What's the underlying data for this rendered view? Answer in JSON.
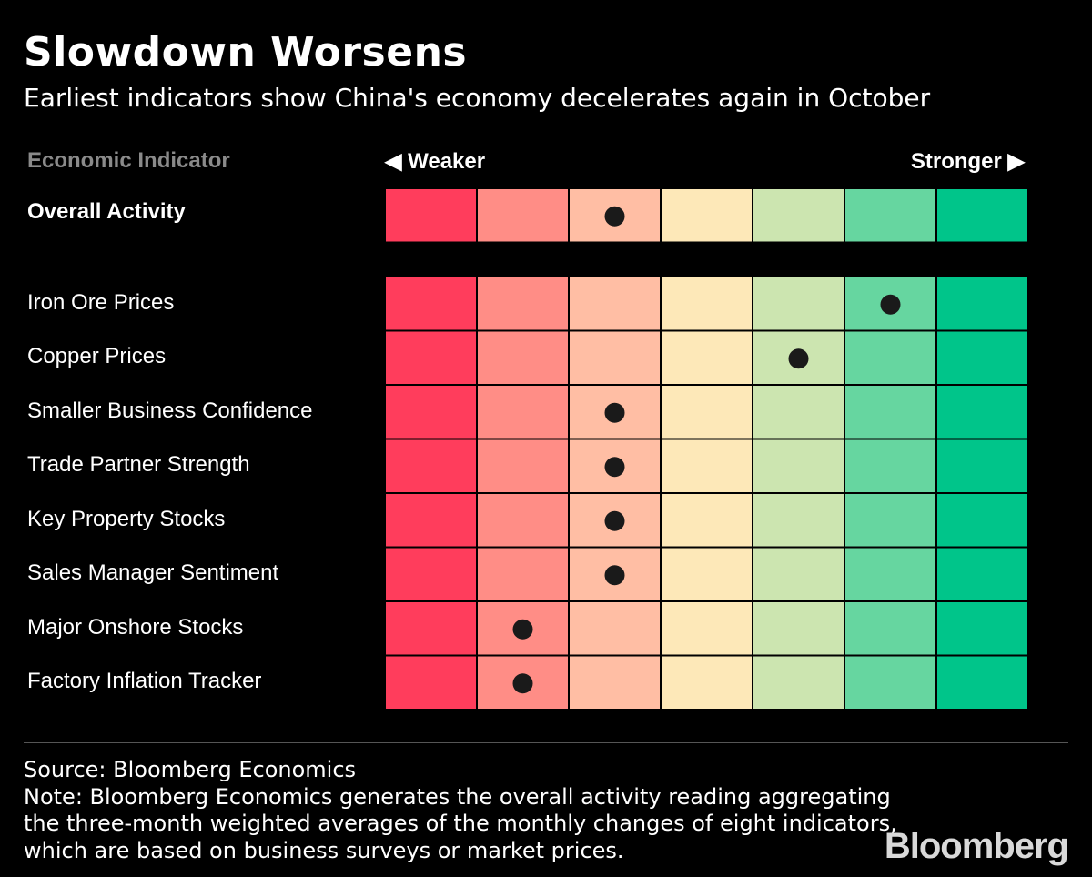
{
  "title": "Slowdown Worsens",
  "subtitle": "Earliest indicators show China's economy decelerates again in October",
  "headers": {
    "indicator": "Economic Indicator",
    "weaker": "◀ Weaker",
    "stronger": "Stronger ▶"
  },
  "chart_data": {
    "type": "heatmap",
    "title": "Slowdown Worsens",
    "scale_min_label": "◀ Weaker",
    "scale_max_label": "Stronger ▶",
    "levels": 7,
    "level_colors": [
      "#ff3d5c",
      "#ff8d86",
      "#ffbea4",
      "#fde8b8",
      "#cce5b0",
      "#66d6a0",
      "#00c58a"
    ],
    "overall": {
      "label": "Overall Activity",
      "level": 3
    },
    "indicators": [
      {
        "label": "Iron Ore Prices",
        "level": 6
      },
      {
        "label": "Copper Prices",
        "level": 5
      },
      {
        "label": "Smaller Business Confidence",
        "level": 3
      },
      {
        "label": "Trade Partner Strength",
        "level": 3
      },
      {
        "label": "Key Property Stocks",
        "level": 3
      },
      {
        "label": "Sales Manager Sentiment",
        "level": 3
      },
      {
        "label": "Major Onshore Stocks",
        "level": 2
      },
      {
        "label": "Factory Inflation Tracker",
        "level": 2
      }
    ]
  },
  "footer": {
    "source": "Source: Bloomberg Economics",
    "note": "Note: Bloomberg Economics generates the overall activity reading aggregating the three-month weighted averages of the monthly changes of eight indicators, which are based on business surveys or market prices."
  },
  "brand": "Bloomberg"
}
